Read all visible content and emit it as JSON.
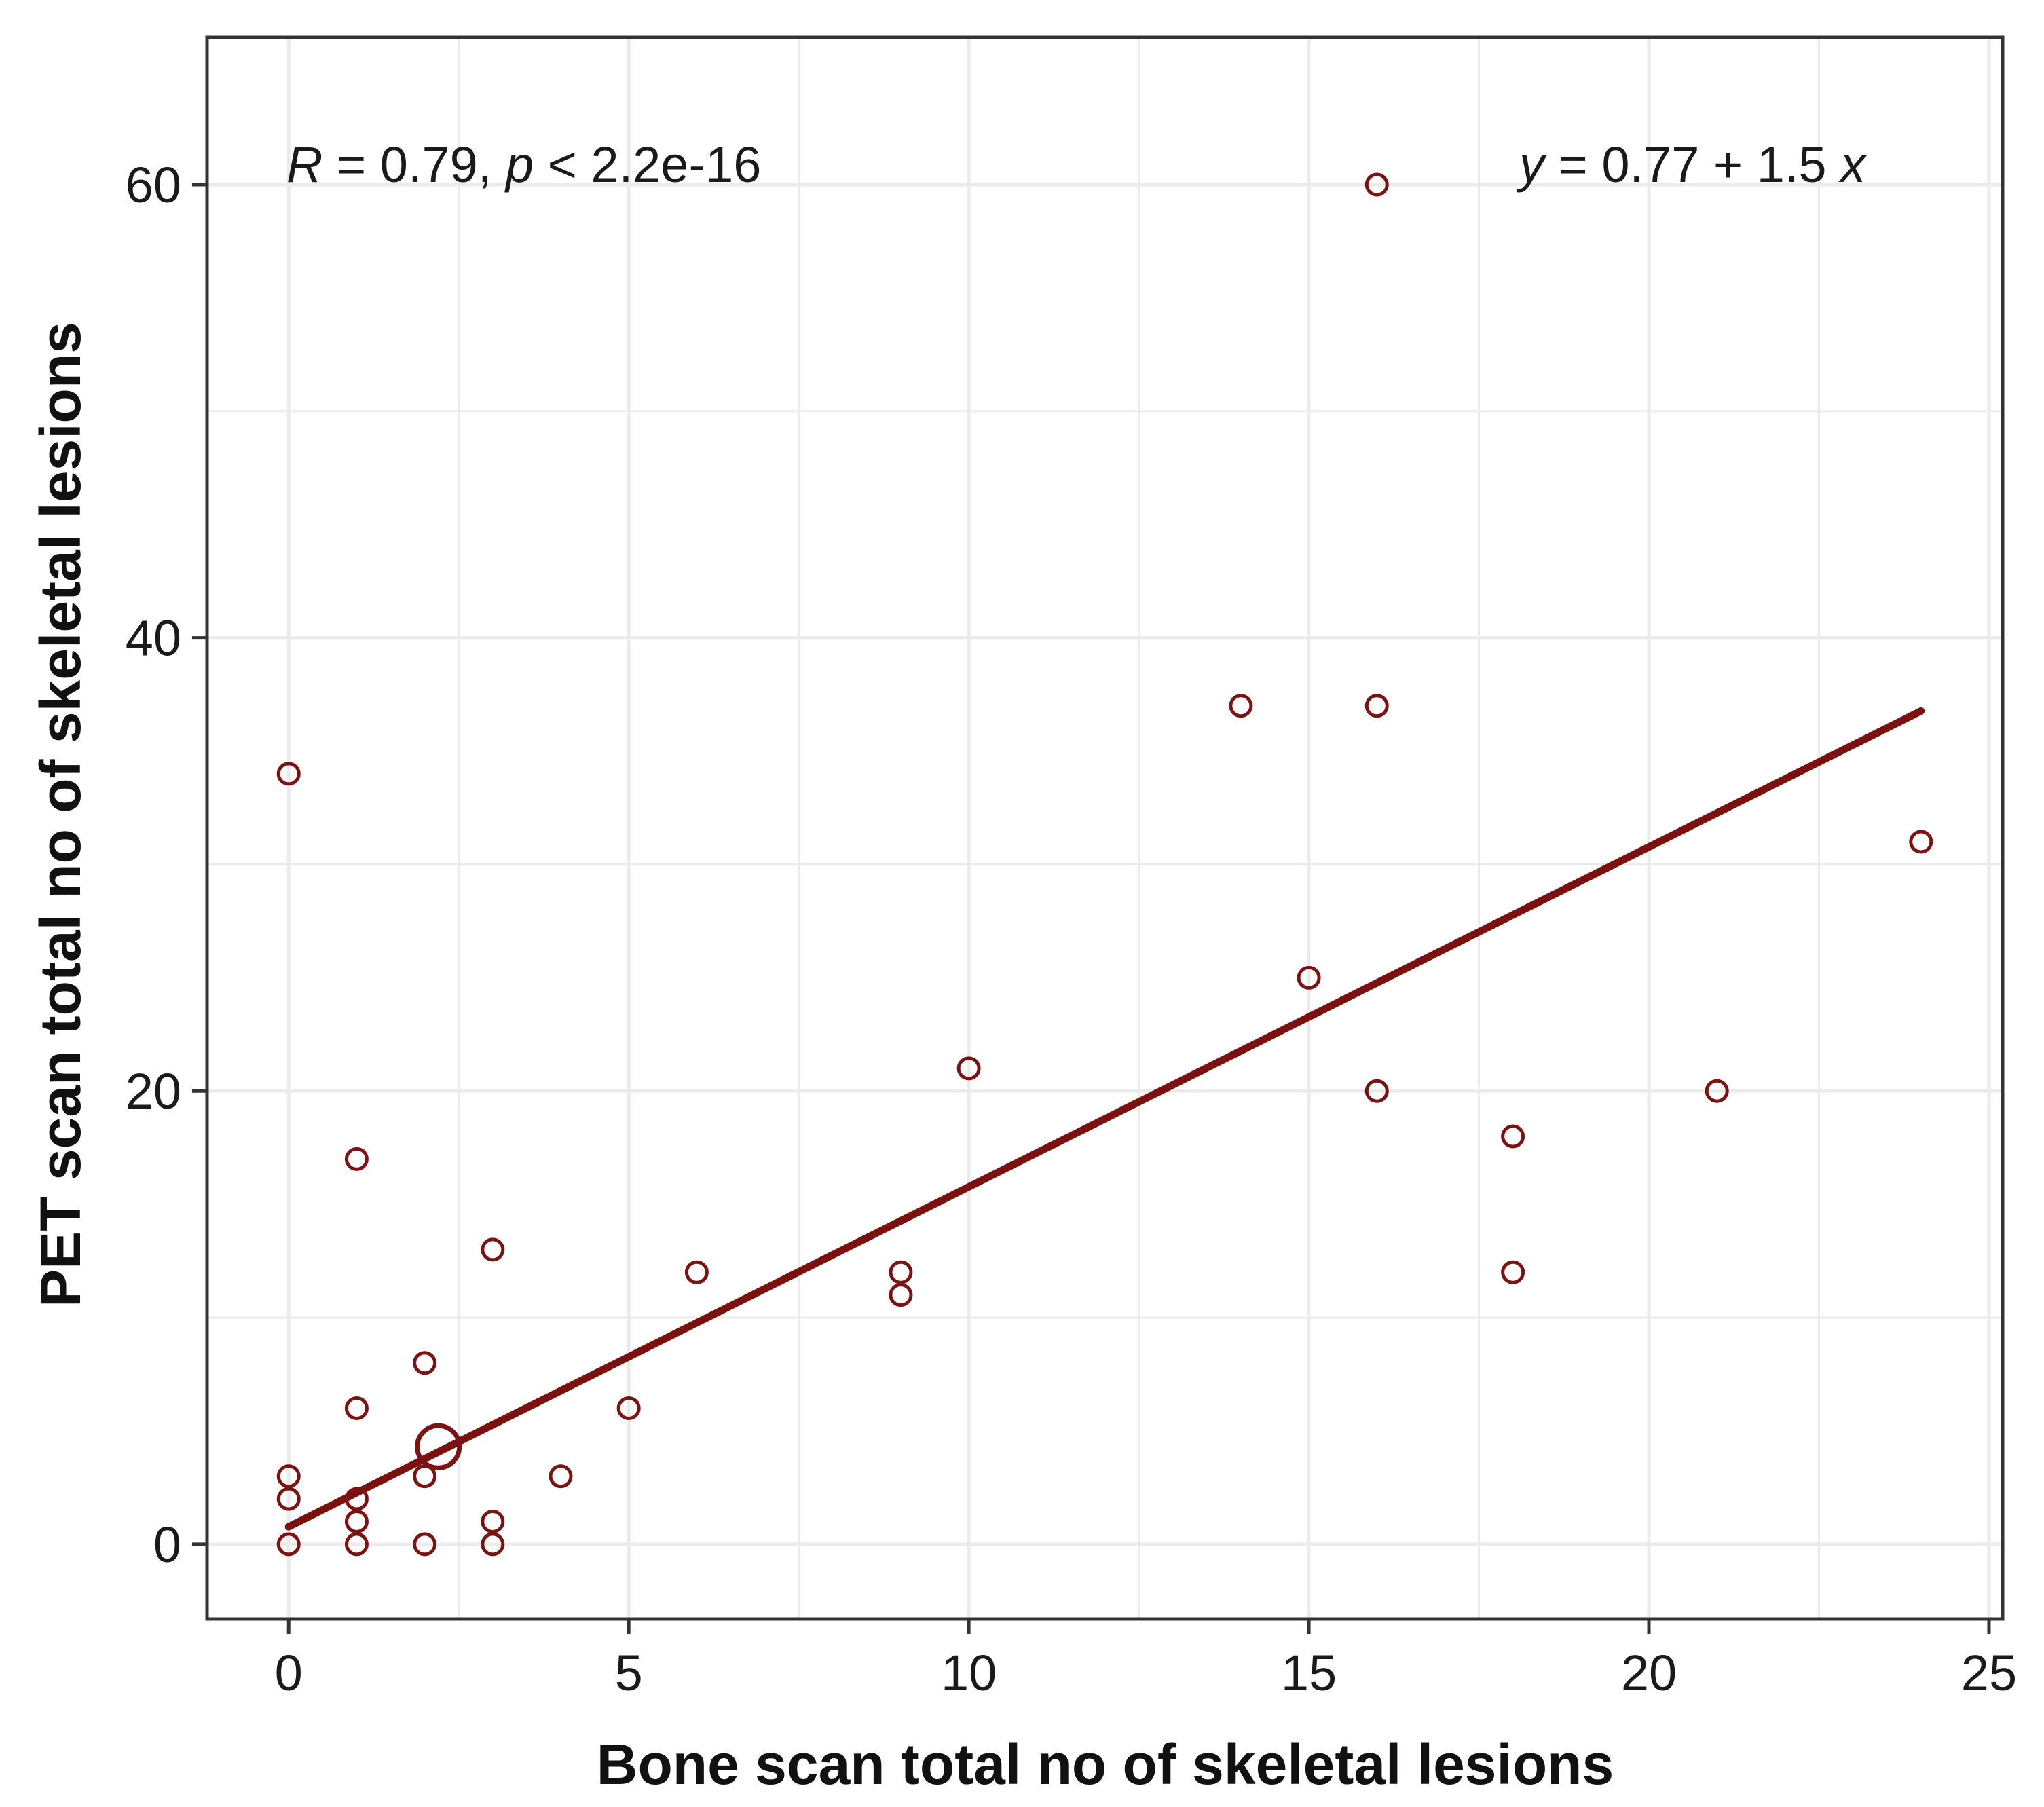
{
  "chart_data": {
    "type": "scatter",
    "xlabel": "Bone scan total no of skeletal lesions",
    "ylabel": "PET scan total no of skeletal lesions",
    "xlim": [
      -1.2,
      25.2
    ],
    "ylim": [
      -3.3,
      66.5
    ],
    "x_ticks": [
      "0",
      "5",
      "10",
      "15",
      "20",
      "25"
    ],
    "y_ticks": [
      "0",
      "20",
      "40",
      "60"
    ],
    "grid": true,
    "annotations": {
      "correlation": {
        "r_symbol": "R",
        "r_text": " = 0.79, ",
        "p_symbol": "p",
        "p_text": " < 2.2e-16"
      },
      "equation": {
        "y_symbol": "y",
        "mid_text": " = 0.77 + 1.5 ",
        "x_symbol": "x"
      }
    },
    "regression": {
      "intercept": 0.77,
      "slope": 1.5,
      "x_range": [
        0,
        24
      ]
    },
    "points": [
      {
        "x": 0,
        "y": 0
      },
      {
        "x": 0,
        "y": 2
      },
      {
        "x": 0,
        "y": 3
      },
      {
        "x": 0,
        "y": 34
      },
      {
        "x": 1,
        "y": 0
      },
      {
        "x": 1,
        "y": 1
      },
      {
        "x": 1,
        "y": 2
      },
      {
        "x": 1,
        "y": 6
      },
      {
        "x": 1,
        "y": 17
      },
      {
        "x": 2,
        "y": 0
      },
      {
        "x": 2,
        "y": 3
      },
      {
        "x": 2,
        "y": 8
      },
      {
        "x": 3,
        "y": 0
      },
      {
        "x": 3,
        "y": 1
      },
      {
        "x": 3,
        "y": 13
      },
      {
        "x": 4,
        "y": 3
      },
      {
        "x": 5,
        "y": 6
      },
      {
        "x": 6,
        "y": 12
      },
      {
        "x": 9,
        "y": 11
      },
      {
        "x": 9,
        "y": 12
      },
      {
        "x": 10,
        "y": 21
      },
      {
        "x": 14,
        "y": 37
      },
      {
        "x": 15,
        "y": 25
      },
      {
        "x": 16,
        "y": 20
      },
      {
        "x": 16,
        "y": 37
      },
      {
        "x": 16,
        "y": 60
      },
      {
        "x": 18,
        "y": 12
      },
      {
        "x": 18,
        "y": 18
      },
      {
        "x": 21,
        "y": 20
      },
      {
        "x": 24,
        "y": 31
      },
      {
        "x": 2.2,
        "y": 4.3,
        "large": true
      }
    ],
    "colors": {
      "points": "#7a1414",
      "line": "#7a1010",
      "grid": "#ebebeb",
      "border": "#333333"
    }
  }
}
